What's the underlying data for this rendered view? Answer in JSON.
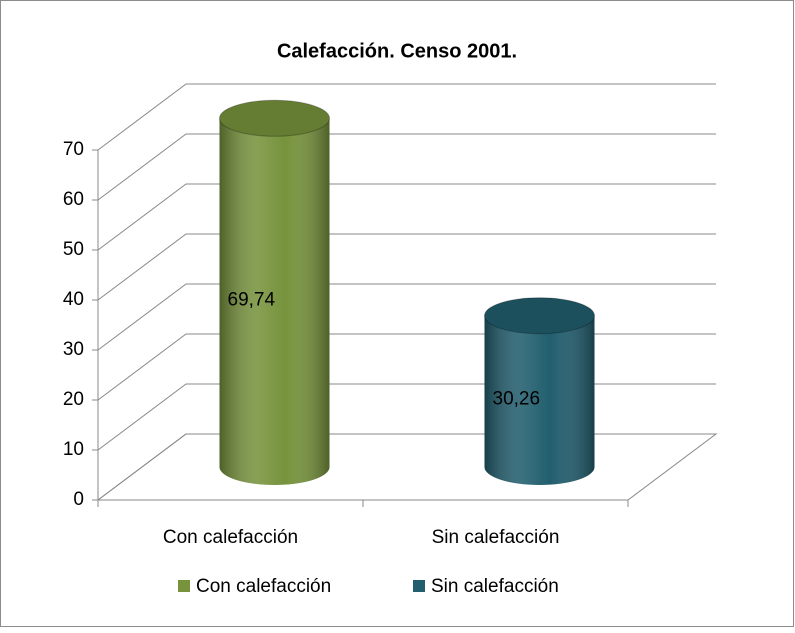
{
  "chart_data": {
    "type": "bar3d",
    "title": "Calefacción. Censo 2001.",
    "categories": [
      "Con calefacción",
      "Sin calefacción"
    ],
    "values": [
      69.74,
      30.26
    ],
    "value_labels": [
      "69,74",
      "30,26"
    ],
    "colors": [
      "#77933c",
      "#215e6e"
    ],
    "ylim": [
      0,
      70
    ],
    "yticks": [
      0,
      10,
      20,
      30,
      40,
      50,
      60,
      70
    ],
    "grid": true,
    "legend": "bottom"
  }
}
